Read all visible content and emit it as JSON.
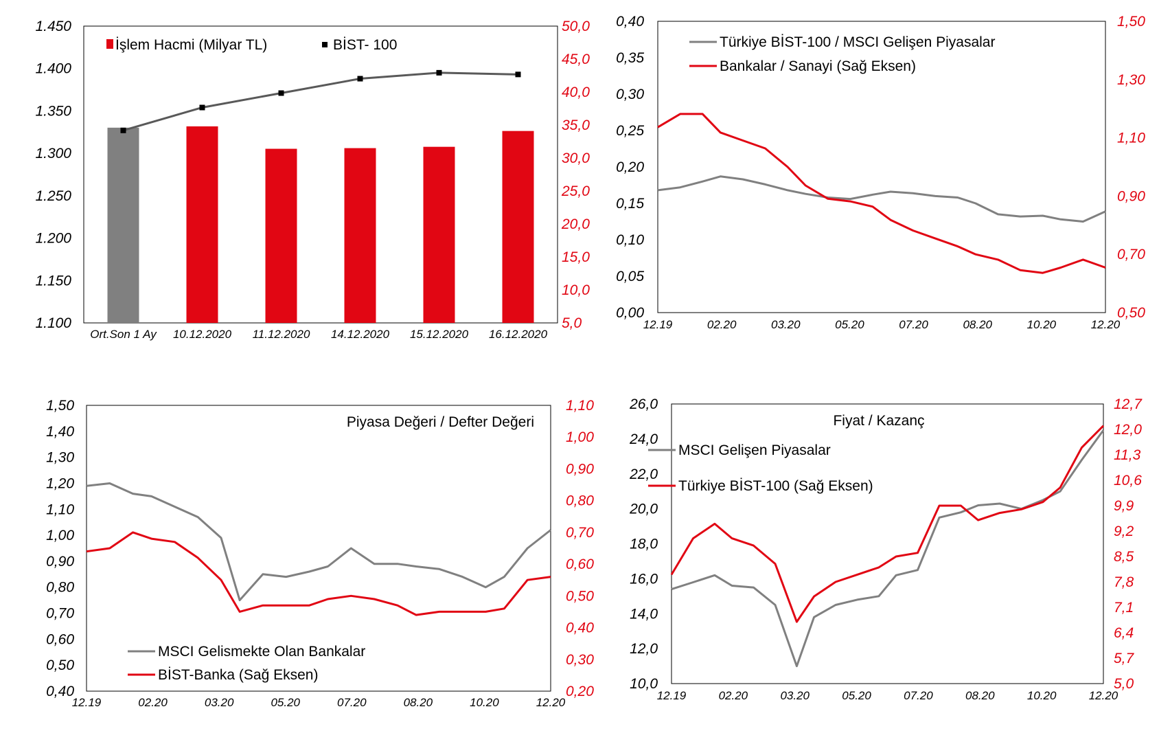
{
  "colors": {
    "red": "#e10613",
    "gray": "#808080",
    "dark": "#595959",
    "black": "#000000"
  },
  "chart_data": [
    {
      "type": "bar",
      "categories": [
        "Ort.Son 1 Ay",
        "10.12.2020",
        "11.12.2020",
        "14.12.2020",
        "15.12.2020",
        "16.12.2020"
      ],
      "legend": [
        "İşlem Hacmi (Milyar TL)",
        "BİST- 100"
      ],
      "left_ticks": [
        "1.450",
        "1.400",
        "1.350",
        "1.300",
        "1.250",
        "1.200",
        "1.150",
        "1.100"
      ],
      "right_ticks": [
        "50,0",
        "45,0",
        "40,0",
        "35,0",
        "30,0",
        "25,0",
        "20,0",
        "15,0",
        "10,0",
        "5,0"
      ],
      "ylim_left": [
        1100,
        1450
      ],
      "ylim_right": [
        5,
        50
      ],
      "series": [
        {
          "name": "İşlem Hacmi (Milyar TL)",
          "axis": "right",
          "kind": "bar",
          "values": [
            34.6,
            34.8,
            31.4,
            31.5,
            31.7,
            34.1
          ]
        },
        {
          "name": "BİST- 100",
          "axis": "left",
          "kind": "line",
          "values": [
            1327,
            1354,
            1371,
            1388,
            1395,
            1393
          ]
        }
      ]
    },
    {
      "type": "line",
      "x_ticks": [
        "12.19",
        "02.20",
        "03.20",
        "05.20",
        "07.20",
        "08.20",
        "10.20",
        "12.20"
      ],
      "left_ticks": [
        "0,40",
        "0,35",
        "0,30",
        "0,25",
        "0,20",
        "0,15",
        "0,10",
        "0,05",
        "0,00"
      ],
      "right_ticks": [
        "1,50",
        "1,30",
        "1,10",
        "0,90",
        "0,70",
        "0,50"
      ],
      "ylim_left": [
        0,
        0.4
      ],
      "ylim_right": [
        0.5,
        1.6
      ],
      "series": [
        {
          "name": "Türkiye BİST-100 / MSCI Gelişen Piyasalar",
          "axis": "left",
          "x": [
            0,
            0.05,
            0.1,
            0.14,
            0.19,
            0.24,
            0.29,
            0.33,
            0.38,
            0.43,
            0.48,
            0.52,
            0.57,
            0.62,
            0.67,
            0.71,
            0.76,
            0.81,
            0.86,
            0.9,
            0.95,
            1.0
          ],
          "y": [
            0.168,
            0.172,
            0.18,
            0.187,
            0.183,
            0.176,
            0.168,
            0.163,
            0.158,
            0.156,
            0.162,
            0.166,
            0.164,
            0.16,
            0.158,
            0.15,
            0.135,
            0.132,
            0.133,
            0.128,
            0.125,
            0.139
          ]
        },
        {
          "name": "Bankalar / Sanayi (Sağ Eksen)",
          "axis": "right",
          "x": [
            0,
            0.05,
            0.1,
            0.14,
            0.19,
            0.24,
            0.29,
            0.33,
            0.38,
            0.43,
            0.48,
            0.52,
            0.57,
            0.62,
            0.67,
            0.71,
            0.76,
            0.81,
            0.86,
            0.9,
            0.95,
            1.0
          ],
          "y": [
            1.2,
            1.25,
            1.25,
            1.18,
            1.15,
            1.12,
            1.05,
            0.98,
            0.93,
            0.92,
            0.9,
            0.85,
            0.81,
            0.78,
            0.75,
            0.72,
            0.7,
            0.66,
            0.65,
            0.67,
            0.7,
            0.67
          ]
        }
      ]
    },
    {
      "type": "line",
      "title": "Piyasa Değeri / Defter Değeri",
      "x_ticks": [
        "12.19",
        "02.20",
        "03.20",
        "05.20",
        "07.20",
        "08.20",
        "10.20",
        "12.20"
      ],
      "left_ticks": [
        "1,50",
        "1,40",
        "1,30",
        "1,20",
        "1,10",
        "1,00",
        "0,90",
        "0,80",
        "0,70",
        "0,60",
        "0,50",
        "0,40"
      ],
      "right_ticks": [
        "1,10",
        "1,00",
        "0,90",
        "0,80",
        "0,70",
        "0,60",
        "0,50",
        "0,40",
        "0,30",
        "0,20"
      ],
      "ylim_left": [
        0.4,
        1.5
      ],
      "ylim_right": [
        0.2,
        1.1
      ],
      "series": [
        {
          "name": "MSCI Gelismekte Olan Bankalar",
          "axis": "left",
          "x": [
            0,
            0.05,
            0.1,
            0.14,
            0.19,
            0.24,
            0.29,
            0.33,
            0.38,
            0.43,
            0.48,
            0.52,
            0.57,
            0.62,
            0.67,
            0.71,
            0.76,
            0.81,
            0.86,
            0.9,
            0.95,
            1.0
          ],
          "y": [
            1.19,
            1.2,
            1.16,
            1.15,
            1.11,
            1.07,
            0.99,
            0.75,
            0.85,
            0.84,
            0.86,
            0.88,
            0.95,
            0.89,
            0.89,
            0.88,
            0.87,
            0.84,
            0.8,
            0.84,
            0.95,
            1.02
          ]
        },
        {
          "name": "BİST-Banka (Sağ Eksen)",
          "axis": "right",
          "x": [
            0,
            0.05,
            0.1,
            0.14,
            0.19,
            0.24,
            0.29,
            0.33,
            0.38,
            0.43,
            0.48,
            0.52,
            0.57,
            0.62,
            0.67,
            0.71,
            0.76,
            0.81,
            0.86,
            0.9,
            0.95,
            1.0
          ],
          "y": [
            0.64,
            0.65,
            0.7,
            0.68,
            0.67,
            0.62,
            0.55,
            0.45,
            0.47,
            0.47,
            0.47,
            0.49,
            0.5,
            0.49,
            0.47,
            0.44,
            0.45,
            0.45,
            0.45,
            0.46,
            0.55,
            0.56
          ]
        }
      ]
    },
    {
      "type": "line",
      "title": "Fiyat / Kazanç",
      "x_ticks": [
        "12.19",
        "02.20",
        "03.20",
        "05.20",
        "07.20",
        "08.20",
        "10.20",
        "12.20"
      ],
      "left_ticks": [
        "26,0",
        "24,0",
        "22,0",
        "20,0",
        "18,0",
        "16,0",
        "14,0",
        "12,0",
        "10,0"
      ],
      "right_ticks": [
        "12,7",
        "12,0",
        "11,3",
        "10,6",
        "9,9",
        "9,2",
        "8,5",
        "7,8",
        "7,1",
        "6,4",
        "5,7",
        "5,0"
      ],
      "ylim_left": [
        10,
        26
      ],
      "ylim_right": [
        5,
        12.7
      ],
      "series": [
        {
          "name": "MSCI Gelişen Piyasalar",
          "axis": "left",
          "x": [
            0,
            0.05,
            0.1,
            0.14,
            0.19,
            0.24,
            0.29,
            0.33,
            0.38,
            0.43,
            0.48,
            0.52,
            0.57,
            0.62,
            0.67,
            0.71,
            0.76,
            0.81,
            0.86,
            0.9,
            0.95,
            1.0
          ],
          "y": [
            15.4,
            15.8,
            16.2,
            15.6,
            15.5,
            14.5,
            11.0,
            13.8,
            14.5,
            14.8,
            15.0,
            16.2,
            16.5,
            19.5,
            19.8,
            20.2,
            20.3,
            20.0,
            20.5,
            21.0,
            22.8,
            24.5
          ]
        },
        {
          "name": "Türkiye BİST-100 (Sağ Eksen)",
          "axis": "right",
          "x": [
            0,
            0.05,
            0.1,
            0.14,
            0.19,
            0.24,
            0.29,
            0.33,
            0.38,
            0.43,
            0.48,
            0.52,
            0.57,
            0.62,
            0.67,
            0.71,
            0.76,
            0.81,
            0.86,
            0.9,
            0.95,
            1.0
          ],
          "y": [
            8.0,
            9.0,
            9.4,
            9.0,
            8.8,
            8.3,
            6.7,
            7.4,
            7.8,
            8.0,
            8.2,
            8.5,
            8.6,
            9.9,
            9.9,
            9.5,
            9.7,
            9.8,
            10.0,
            10.4,
            11.5,
            12.1
          ]
        }
      ]
    }
  ]
}
